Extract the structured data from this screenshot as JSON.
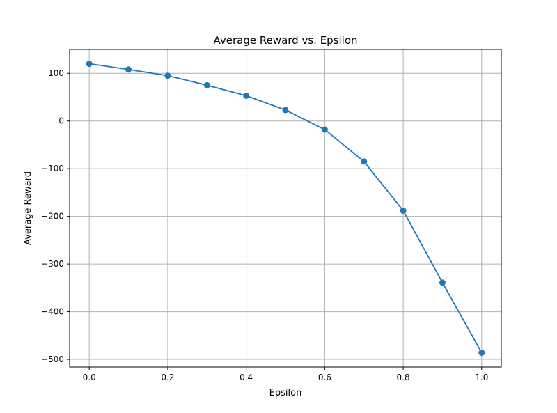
{
  "chart_data": {
    "type": "line",
    "title": "Average Reward vs. Epsilon",
    "xlabel": "Epsilon",
    "ylabel": "Average Reward",
    "x": [
      0.0,
      0.1,
      0.2,
      0.3,
      0.4,
      0.5,
      0.6,
      0.7,
      0.8,
      0.9,
      1.0
    ],
    "series": [
      {
        "values": [
          120,
          108,
          95,
          75,
          53,
          23,
          -18,
          -85,
          -188,
          -339,
          -486
        ],
        "color": "#1f77b4",
        "marker": "circle"
      }
    ],
    "xlim": [
      -0.05,
      1.05
    ],
    "ylim": [
      -516,
      150
    ],
    "xticks": [
      0.0,
      0.2,
      0.4,
      0.6,
      0.8,
      1.0
    ],
    "xtick_labels": [
      "0.0",
      "0.2",
      "0.4",
      "0.6",
      "0.8",
      "1.0"
    ],
    "yticks": [
      100,
      0,
      -100,
      -200,
      -300,
      -400,
      -500
    ],
    "ytick_labels": [
      "100",
      "0",
      "−100",
      "−200",
      "−300",
      "−400",
      "−500"
    ],
    "grid": true
  }
}
